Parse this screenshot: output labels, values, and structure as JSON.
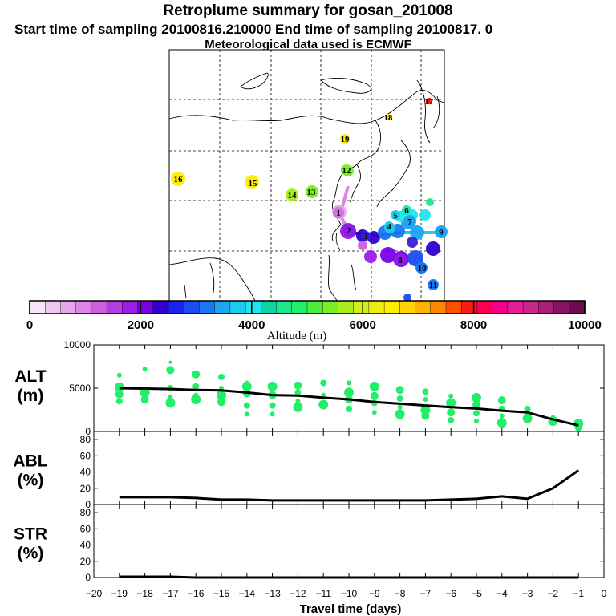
{
  "header": {
    "title": "Retroplume summary for gosan_201008",
    "sampling_line": "Start time of sampling 20100816.210000     End time of sampling 20100817.     0",
    "met_line": "Meteorological data used is ECMWF"
  },
  "colorbar": {
    "title": "Altitude (m)",
    "labels": [
      "0",
      "2000",
      "4000",
      "6000",
      "8000",
      "10000"
    ],
    "colors": [
      "#f7e3f7",
      "#efc8ef",
      "#e6a6ea",
      "#dc85e6",
      "#cc5ee0",
      "#b43ce0",
      "#9a1ee6",
      "#7a00e8",
      "#3300cc",
      "#2020ee",
      "#1a4cf0",
      "#1a78f0",
      "#1ea6f0",
      "#1ecbf0",
      "#1ee6ee",
      "#10d2a4",
      "#1ee68c",
      "#22ee6a",
      "#4cee3c",
      "#7aee28",
      "#a6ee1e",
      "#d0ee1e",
      "#ecee14",
      "#ffee00",
      "#ffd200",
      "#ffb000",
      "#ff8800",
      "#ff5000",
      "#ff1a1a",
      "#ff0050",
      "#f2008a",
      "#e01e96",
      "#c8288c",
      "#a81e78",
      "#8a1464",
      "#6e0a50"
    ]
  },
  "map": {
    "points": [
      {
        "label": "1",
        "color": "#d070e0",
        "size": 7
      },
      {
        "label": "2",
        "color": "#8a1ee6",
        "size": 8
      },
      {
        "label": "3",
        "color": "#3a20d8",
        "size": 6
      },
      {
        "label": "4",
        "color": "#1ec8ec",
        "size": 6
      },
      {
        "label": "5",
        "color": "#1ec8ec",
        "size": 6
      },
      {
        "label": "6",
        "color": "#1ee6c0",
        "size": 6
      },
      {
        "label": "7",
        "color": "#1ea6f0",
        "size": 8
      },
      {
        "label": "8",
        "color": "#8a1ee6",
        "size": 8
      },
      {
        "label": "9",
        "color": "#1ea6f0",
        "size": 8
      },
      {
        "label": "10",
        "color": "#1a78f0",
        "size": 7
      },
      {
        "label": "11",
        "color": "#1a78f0",
        "size": 6
      },
      {
        "label": "12",
        "color": "#7aee28",
        "size": 7
      },
      {
        "label": "13",
        "color": "#7aee28",
        "size": 7
      },
      {
        "label": "14",
        "color": "#a6ee1e",
        "size": 7
      },
      {
        "label": "15",
        "color": "#ffee00",
        "size": 7
      },
      {
        "label": "16",
        "color": "#ffee00",
        "size": 7
      },
      {
        "label": "17",
        "color": "#ff1a1a",
        "size": 4
      },
      {
        "label": "18",
        "color": "#ffd200",
        "size": 4
      },
      {
        "label": "19",
        "color": "#ffee00",
        "size": 5
      }
    ]
  },
  "chart_data": [
    {
      "type": "scatter",
      "title": "ALT (m)",
      "panel_label": [
        "ALT",
        "(m)"
      ],
      "xlabel": "Travel time (days)",
      "xlim": [
        -20,
        0
      ],
      "ylim": [
        0,
        10000
      ],
      "yticks": [
        "0",
        "5000",
        "10000"
      ],
      "mean_line": {
        "x": [
          -19,
          -18,
          -17,
          -16,
          -15,
          -14,
          -13,
          -12,
          -11,
          -10,
          -9,
          -8,
          -7,
          -6,
          -5,
          -4,
          -3,
          -2,
          -1
        ],
        "y": [
          5000,
          4950,
          4900,
          4800,
          4750,
          4500,
          4200,
          4150,
          3900,
          3700,
          3400,
          3200,
          3000,
          2800,
          2650,
          2400,
          2200,
          1400,
          700
        ]
      },
      "cluster_points": [
        {
          "x": -19,
          "y": [
            7500,
            6500,
            5100,
            4300,
            3500
          ]
        },
        {
          "x": -18,
          "y": [
            7200,
            4500,
            3700
          ]
        },
        {
          "x": -17,
          "y": [
            8000,
            7100,
            5000,
            4000,
            3300
          ]
        },
        {
          "x": -16,
          "y": [
            6600,
            5200,
            4200,
            3700
          ]
        },
        {
          "x": -15,
          "y": [
            6300,
            5000,
            4200,
            3400
          ]
        },
        {
          "x": -14,
          "y": [
            5600,
            5200,
            4400,
            3000,
            2000
          ]
        },
        {
          "x": -13,
          "y": [
            5200,
            4200,
            3000,
            2000
          ]
        },
        {
          "x": -12,
          "y": [
            5300,
            4500,
            3500,
            2800
          ]
        },
        {
          "x": -11,
          "y": [
            5600,
            4200,
            3100
          ]
        },
        {
          "x": -10,
          "y": [
            5600,
            4500,
            3700,
            2600
          ]
        },
        {
          "x": -9,
          "y": [
            5200,
            4100,
            3300,
            2200
          ]
        },
        {
          "x": -8,
          "y": [
            4800,
            3800,
            2800,
            2000
          ]
        },
        {
          "x": -7,
          "y": [
            4600,
            3700,
            2500,
            1800
          ]
        },
        {
          "x": -6,
          "y": [
            4100,
            3300,
            2200,
            1300
          ]
        },
        {
          "x": -5,
          "y": [
            3900,
            3100,
            2100,
            1200
          ]
        },
        {
          "x": -4,
          "y": [
            3600,
            2600,
            1800,
            1000
          ]
        },
        {
          "x": -3,
          "y": [
            2600,
            2000,
            1500
          ]
        },
        {
          "x": -2,
          "y": [
            1600,
            1200
          ]
        },
        {
          "x": -1,
          "y": [
            900,
            600,
            400
          ]
        }
      ]
    },
    {
      "type": "line",
      "title": "ABL (%)",
      "panel_label": [
        "ABL",
        "(%)"
      ],
      "xlim": [
        -20,
        0
      ],
      "ylim": [
        0,
        90
      ],
      "yticks": [
        "0",
        "20",
        "40",
        "60",
        "80"
      ],
      "x": [
        -19,
        -18,
        -17,
        -16,
        -15,
        -14,
        -13,
        -12,
        -11,
        -10,
        -9,
        -8,
        -7,
        -6,
        -5,
        -4,
        -3,
        -2,
        -1
      ],
      "values": [
        9,
        9,
        9,
        8,
        6,
        6,
        5,
        5,
        5,
        5,
        5,
        5,
        5,
        6,
        7,
        10,
        7,
        20,
        42
      ]
    },
    {
      "type": "line",
      "title": "STR (%)",
      "panel_label": [
        "STR",
        "(%)"
      ],
      "xlim": [
        -20,
        0
      ],
      "ylim": [
        0,
        90
      ],
      "yticks": [
        "0",
        "20",
        "40",
        "60",
        "80"
      ],
      "x": [
        -19,
        -18,
        -17,
        -16,
        -15,
        -14,
        -13,
        -12,
        -11,
        -10,
        -9,
        -8,
        -7,
        -6,
        -5,
        -4,
        -3,
        -2,
        -1
      ],
      "values": [
        1,
        1,
        1,
        0,
        0,
        0,
        0,
        0,
        0,
        0,
        0,
        0,
        0,
        0,
        0,
        0,
        0,
        0,
        0
      ]
    }
  ],
  "x_axis": {
    "ticks": [
      "−20",
      "−19",
      "−18",
      "−17",
      "−16",
      "−15",
      "−14",
      "−13",
      "−12",
      "−11",
      "−10",
      "−9",
      "−8",
      "−7",
      "−6",
      "−5",
      "−4",
      "−3",
      "−2",
      "−1",
      "0"
    ],
    "label": "Travel time (days)"
  }
}
